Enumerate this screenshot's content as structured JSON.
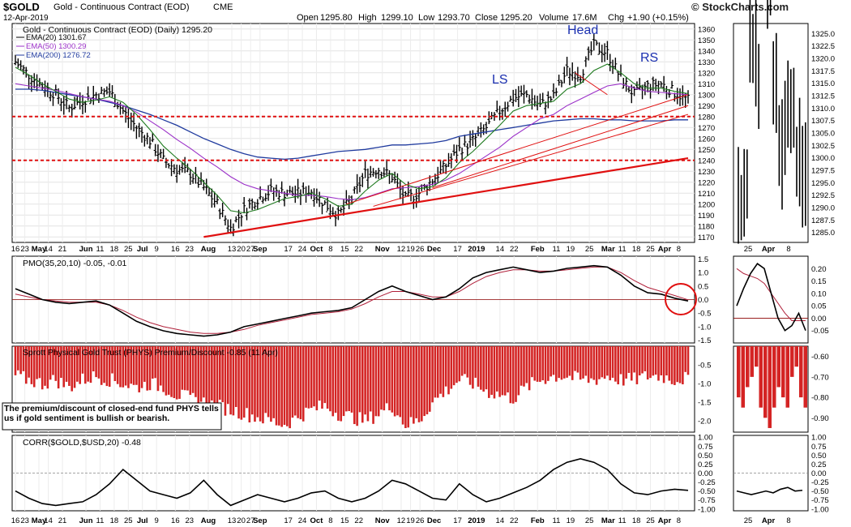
{
  "header": {
    "symbol": "$GOLD",
    "name": "Gold - Continuous Contract (EOD)",
    "exchange": "CME",
    "date": "12-Apr-2019",
    "ohlc": {
      "open": "1295.80",
      "high": "1299.10",
      "low": "1293.70",
      "close": "1295.20",
      "volume": "17.6M",
      "chg": "+1.90 (+0.15%)"
    },
    "brand": "© StockCharts.com"
  },
  "chart_data": [
    {
      "id": "price",
      "type": "line",
      "title": "Gold - Continuous Contract (EOD) (Daily) 1295.20",
      "legend": [
        {
          "label": "EMA(20) 1301.67",
          "color": "#1e7a1e"
        },
        {
          "label": "EMA(50) 1300.29",
          "color": "#9b30c8"
        },
        {
          "label": "EMA(200) 1276.72",
          "color": "#1f3a9e"
        }
      ],
      "ylim": [
        1165,
        1365
      ],
      "yticks": [
        1170,
        1180,
        1190,
        1200,
        1210,
        1220,
        1230,
        1240,
        1250,
        1260,
        1270,
        1280,
        1290,
        1300,
        1310,
        1320,
        1330,
        1340,
        1350,
        1360
      ],
      "x": [
        0,
        5,
        10,
        15,
        20,
        25,
        30,
        35,
        40,
        45,
        50,
        55,
        60,
        65,
        70,
        75,
        80,
        85,
        90,
        95,
        100,
        105,
        110,
        115,
        120,
        125,
        130,
        135,
        140,
        145,
        150,
        155,
        160,
        165,
        170,
        175,
        180,
        185,
        190,
        195,
        200,
        205,
        210,
        215,
        220,
        225,
        230,
        235,
        240,
        245,
        250
      ],
      "close": [
        1330,
        1318,
        1308,
        1300,
        1288,
        1295,
        1300,
        1303,
        1285,
        1270,
        1258,
        1240,
        1232,
        1228,
        1215,
        1200,
        1178,
        1195,
        1205,
        1212,
        1210,
        1210,
        1212,
        1200,
        1190,
        1205,
        1228,
        1232,
        1225,
        1205,
        1210,
        1222,
        1235,
        1250,
        1258,
        1270,
        1285,
        1297,
        1300,
        1290,
        1298,
        1322,
        1318,
        1345,
        1338,
        1315,
        1300,
        1308,
        1310,
        1302,
        1295
      ],
      "ema20": [
        1325,
        1318,
        1310,
        1303,
        1296,
        1293,
        1295,
        1298,
        1293,
        1282,
        1268,
        1253,
        1242,
        1232,
        1220,
        1208,
        1194,
        1192,
        1195,
        1200,
        1205,
        1207,
        1210,
        1205,
        1198,
        1200,
        1212,
        1222,
        1228,
        1218,
        1214,
        1216,
        1224,
        1238,
        1248,
        1260,
        1272,
        1285,
        1290,
        1292,
        1294,
        1305,
        1310,
        1322,
        1328,
        1320,
        1310,
        1306,
        1306,
        1303,
        1301
      ],
      "ema50": [
        1310,
        1308,
        1306,
        1304,
        1301,
        1298,
        1296,
        1294,
        1290,
        1284,
        1276,
        1268,
        1259,
        1251,
        1242,
        1234,
        1225,
        1218,
        1214,
        1212,
        1210,
        1208,
        1208,
        1207,
        1205,
        1204,
        1206,
        1210,
        1214,
        1215,
        1216,
        1218,
        1222,
        1228,
        1236,
        1244,
        1252,
        1262,
        1270,
        1278,
        1282,
        1290,
        1296,
        1302,
        1308,
        1310,
        1306,
        1303,
        1302,
        1301,
        1300
      ],
      "ema200": [
        1305,
        1305,
        1304,
        1302,
        1300,
        1298,
        1296,
        1293,
        1290,
        1286,
        1282,
        1277,
        1272,
        1266,
        1260,
        1255,
        1250,
        1246,
        1243,
        1242,
        1241,
        1242,
        1244,
        1246,
        1248,
        1249,
        1250,
        1252,
        1254,
        1254,
        1255,
        1256,
        1258,
        1262,
        1264,
        1266,
        1268,
        1270,
        1272,
        1274,
        1276,
        1277,
        1278,
        1278,
        1277,
        1277,
        1276,
        1276,
        1276,
        1277,
        1277
      ],
      "support_lines": [
        1280,
        1240
      ],
      "trendline": [
        {
          "x": 70,
          "y": 1170
        },
        {
          "x": 250,
          "y": 1242
        }
      ],
      "annotations": [
        "Head",
        "LS",
        "RS"
      ],
      "xlabels": [
        {
          "x": 0,
          "text": "16"
        },
        {
          "x": 2,
          "text": "23"
        },
        {
          "x": 5,
          "text": "May"
        },
        {
          "x": 7,
          "text": "14"
        },
        {
          "x": 10,
          "text": "21"
        },
        {
          "x": 15,
          "text": "Jun"
        },
        {
          "x": 18,
          "text": "11"
        },
        {
          "x": 21,
          "text": "18"
        },
        {
          "x": 24,
          "text": "25"
        },
        {
          "x": 27,
          "text": "Jul"
        },
        {
          "x": 30,
          "text": "9"
        },
        {
          "x": 34,
          "text": "16"
        },
        {
          "x": 37,
          "text": "23"
        },
        {
          "x": 41,
          "text": "Aug"
        },
        {
          "x": 46,
          "text": "13"
        },
        {
          "x": 48,
          "text": "20"
        },
        {
          "x": 50,
          "text": "27"
        },
        {
          "x": 52,
          "text": "Sep"
        },
        {
          "x": 58,
          "text": "17"
        },
        {
          "x": 61,
          "text": "24"
        },
        {
          "x": 64,
          "text": "Oct"
        },
        {
          "x": 67,
          "text": "8"
        },
        {
          "x": 70,
          "text": "15"
        },
        {
          "x": 73,
          "text": "22"
        },
        {
          "x": 78,
          "text": "Nov"
        },
        {
          "x": 82,
          "text": "12"
        },
        {
          "x": 84,
          "text": "19"
        },
        {
          "x": 86,
          "text": "26"
        },
        {
          "x": 89,
          "text": "Dec"
        },
        {
          "x": 94,
          "text": "17"
        },
        {
          "x": 98,
          "text": "2019"
        },
        {
          "x": 103,
          "text": "14"
        },
        {
          "x": 106,
          "text": "22"
        },
        {
          "x": 111,
          "text": "Feb"
        },
        {
          "x": 115,
          "text": "11"
        },
        {
          "x": 118,
          "text": "19"
        },
        {
          "x": 122,
          "text": "25"
        },
        {
          "x": 126,
          "text": "Mar"
        },
        {
          "x": 129,
          "text": "11"
        },
        {
          "x": 132,
          "text": "18"
        },
        {
          "x": 135,
          "text": "25"
        },
        {
          "x": 138,
          "text": "Apr"
        },
        {
          "x": 141,
          "text": "8"
        }
      ]
    },
    {
      "id": "price-zoom",
      "type": "line",
      "ylim": [
        1283,
        1327
      ],
      "yticks": [
        1285.0,
        1287.5,
        1290.0,
        1292.5,
        1295.0,
        1297.5,
        1300.0,
        1302.5,
        1305.0,
        1307.5,
        1310.0,
        1312.5,
        1315.0,
        1317.5,
        1320.0,
        1322.5,
        1325.0
      ],
      "xlabels": [
        {
          "x": 0,
          "text": "25"
        },
        {
          "x": 1,
          "text": "Apr"
        },
        {
          "x": 2,
          "text": "8"
        }
      ]
    },
    {
      "id": "pmo",
      "type": "line",
      "title": "PMO(35,20,10) -0.05, -0.01",
      "ylim": [
        -1.6,
        1.6
      ],
      "yticks": [
        -1.5,
        -1.0,
        -0.5,
        0.0,
        0.5,
        1.0,
        1.5
      ],
      "zoom_yticks": [
        "0.20",
        "0.15",
        "0.10",
        "0.05",
        "0.00",
        "-0.05"
      ],
      "pmo": [
        0.4,
        0.2,
        0.0,
        -0.1,
        -0.15,
        -0.1,
        -0.05,
        -0.2,
        -0.5,
        -0.8,
        -1.0,
        -1.15,
        -1.25,
        -1.3,
        -1.35,
        -1.3,
        -1.2,
        -1.0,
        -0.9,
        -0.8,
        -0.7,
        -0.6,
        -0.5,
        -0.45,
        -0.4,
        -0.3,
        0.0,
        0.3,
        0.5,
        0.3,
        0.15,
        0.0,
        0.1,
        0.4,
        0.8,
        1.0,
        1.1,
        1.2,
        1.1,
        1.0,
        1.05,
        1.15,
        1.2,
        1.25,
        1.2,
        0.9,
        0.5,
        0.25,
        0.2,
        0.05,
        -0.05
      ],
      "signal": [
        0.2,
        0.1,
        0.0,
        -0.05,
        -0.1,
        -0.1,
        -0.1,
        -0.2,
        -0.4,
        -0.65,
        -0.85,
        -1.0,
        -1.1,
        -1.2,
        -1.25,
        -1.25,
        -1.2,
        -1.1,
        -0.95,
        -0.85,
        -0.75,
        -0.65,
        -0.55,
        -0.5,
        -0.45,
        -0.35,
        -0.15,
        0.1,
        0.3,
        0.3,
        0.2,
        0.1,
        0.1,
        0.3,
        0.6,
        0.85,
        1.0,
        1.1,
        1.1,
        1.05,
        1.05,
        1.1,
        1.15,
        1.2,
        1.2,
        1.0,
        0.7,
        0.45,
        0.3,
        0.15,
        -0.01
      ]
    },
    {
      "id": "phys",
      "type": "bar",
      "title": "Sprott Physical Gold Trust (PHYS) Premium/Discount -0.85 (11 Apr)",
      "ylim": [
        -2.3,
        0
      ],
      "yticks": [
        -0.5,
        -1.0,
        -1.5,
        -2.0
      ],
      "zoom_yticks": [
        "-0.60",
        "-0.70",
        "-0.80",
        "-0.90"
      ],
      "values": [
        -0.8,
        -0.9,
        -1.0,
        -0.9,
        -1.1,
        -0.9,
        -0.8,
        -0.9,
        -1.0,
        -1.1,
        -1.0,
        -1.1,
        -1.3,
        -1.4,
        -1.5,
        -1.6,
        -1.7,
        -1.8,
        -1.9,
        -2.0,
        -2.1,
        -1.9,
        -1.7,
        -1.6,
        -1.8,
        -1.9,
        -2.0,
        -1.8,
        -1.6,
        -2.1,
        -2.0,
        -1.5,
        -1.2,
        -0.9,
        -1.0,
        -1.2,
        -1.3,
        -1.4,
        -1.1,
        -0.9,
        -0.8,
        -0.8,
        -0.9,
        -0.9,
        -0.8,
        -0.9,
        -0.9,
        -0.8,
        -0.8,
        -0.9,
        -0.85
      ],
      "note": "The premium/discount of closed-end fund PHYS tells us if gold sentiment is bullish or bearish."
    },
    {
      "id": "corr",
      "type": "line",
      "title": "CORR($GOLD,$USD,20) -0.48",
      "ylim": [
        -1.05,
        1.05
      ],
      "yticks": [
        1.0,
        0.75,
        0.5,
        0.25,
        0.0,
        -0.25,
        -0.5,
        -0.75,
        -1.0
      ],
      "ytick_labels": [
        "1.00",
        "0.75",
        "0.50",
        "0.25",
        "0.00",
        "-0.25",
        "-0.50",
        "-0.75",
        "-1.00"
      ],
      "values": [
        -0.5,
        -0.7,
        -0.85,
        -0.9,
        -0.85,
        -0.8,
        -0.6,
        -0.3,
        0.1,
        -0.2,
        -0.5,
        -0.6,
        -0.7,
        -0.55,
        -0.2,
        -0.6,
        -0.9,
        -0.75,
        -0.6,
        -0.7,
        -0.8,
        -0.7,
        -0.55,
        -0.5,
        -0.7,
        -0.8,
        -0.7,
        -0.5,
        -0.2,
        -0.3,
        -0.5,
        -0.7,
        -0.75,
        -0.3,
        -0.6,
        -0.8,
        -0.7,
        -0.55,
        -0.4,
        -0.2,
        0.1,
        0.3,
        0.4,
        0.3,
        0.1,
        -0.3,
        -0.55,
        -0.6,
        -0.5,
        -0.45,
        -0.48
      ]
    }
  ]
}
